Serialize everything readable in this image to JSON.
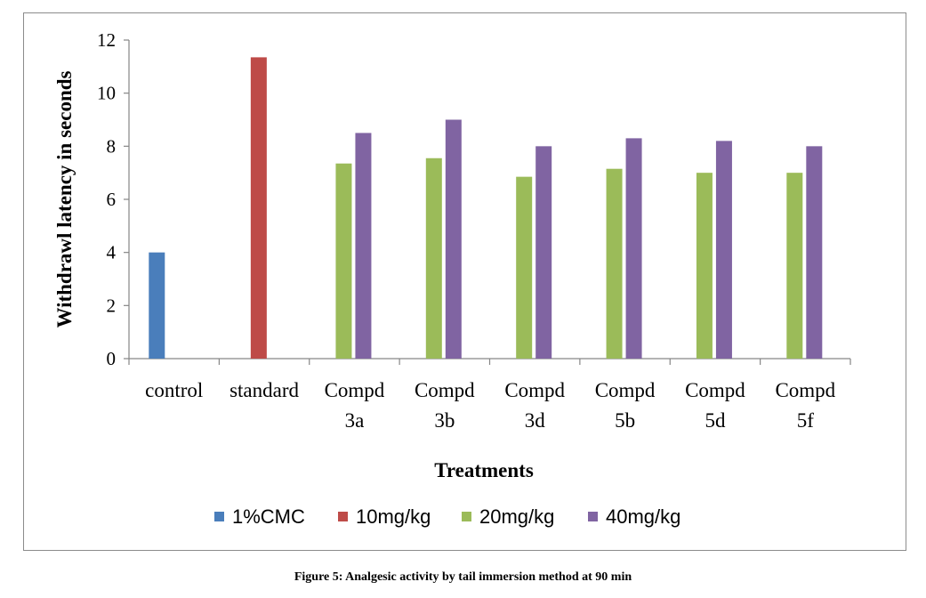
{
  "chart_data": {
    "type": "bar",
    "categories": [
      [
        "control"
      ],
      [
        "standard"
      ],
      [
        "Compd",
        "3a"
      ],
      [
        "Compd",
        "3b"
      ],
      [
        "Compd",
        "3d"
      ],
      [
        "Compd",
        "5b"
      ],
      [
        "Compd",
        "5d"
      ],
      [
        "Compd",
        "5f"
      ]
    ],
    "series": [
      {
        "name": "1%CMC",
        "color": "#4a7ebb",
        "values": [
          4.0,
          null,
          null,
          null,
          null,
          null,
          null,
          null
        ]
      },
      {
        "name": "10mg/kg",
        "color": "#be4b48",
        "values": [
          null,
          11.35,
          null,
          null,
          null,
          null,
          null,
          null
        ]
      },
      {
        "name": "20mg/kg",
        "color": "#9bbb59",
        "values": [
          null,
          null,
          7.35,
          7.55,
          6.85,
          7.15,
          7.0,
          7.0
        ]
      },
      {
        "name": "40mg/kg",
        "color": "#8064a2",
        "values": [
          null,
          null,
          8.5,
          9.0,
          8.0,
          8.3,
          8.2,
          8.0
        ]
      }
    ],
    "xlabel": "Treatments",
    "ylabel": "Withdrawl  latency in seconds",
    "ylim": [
      0,
      12
    ],
    "yticks": [
      0,
      2,
      4,
      6,
      8,
      10,
      12
    ],
    "grid": false,
    "legend": "bottom"
  },
  "caption": "Figure 5: Analgesic activity by tail immersion method at 90 min"
}
